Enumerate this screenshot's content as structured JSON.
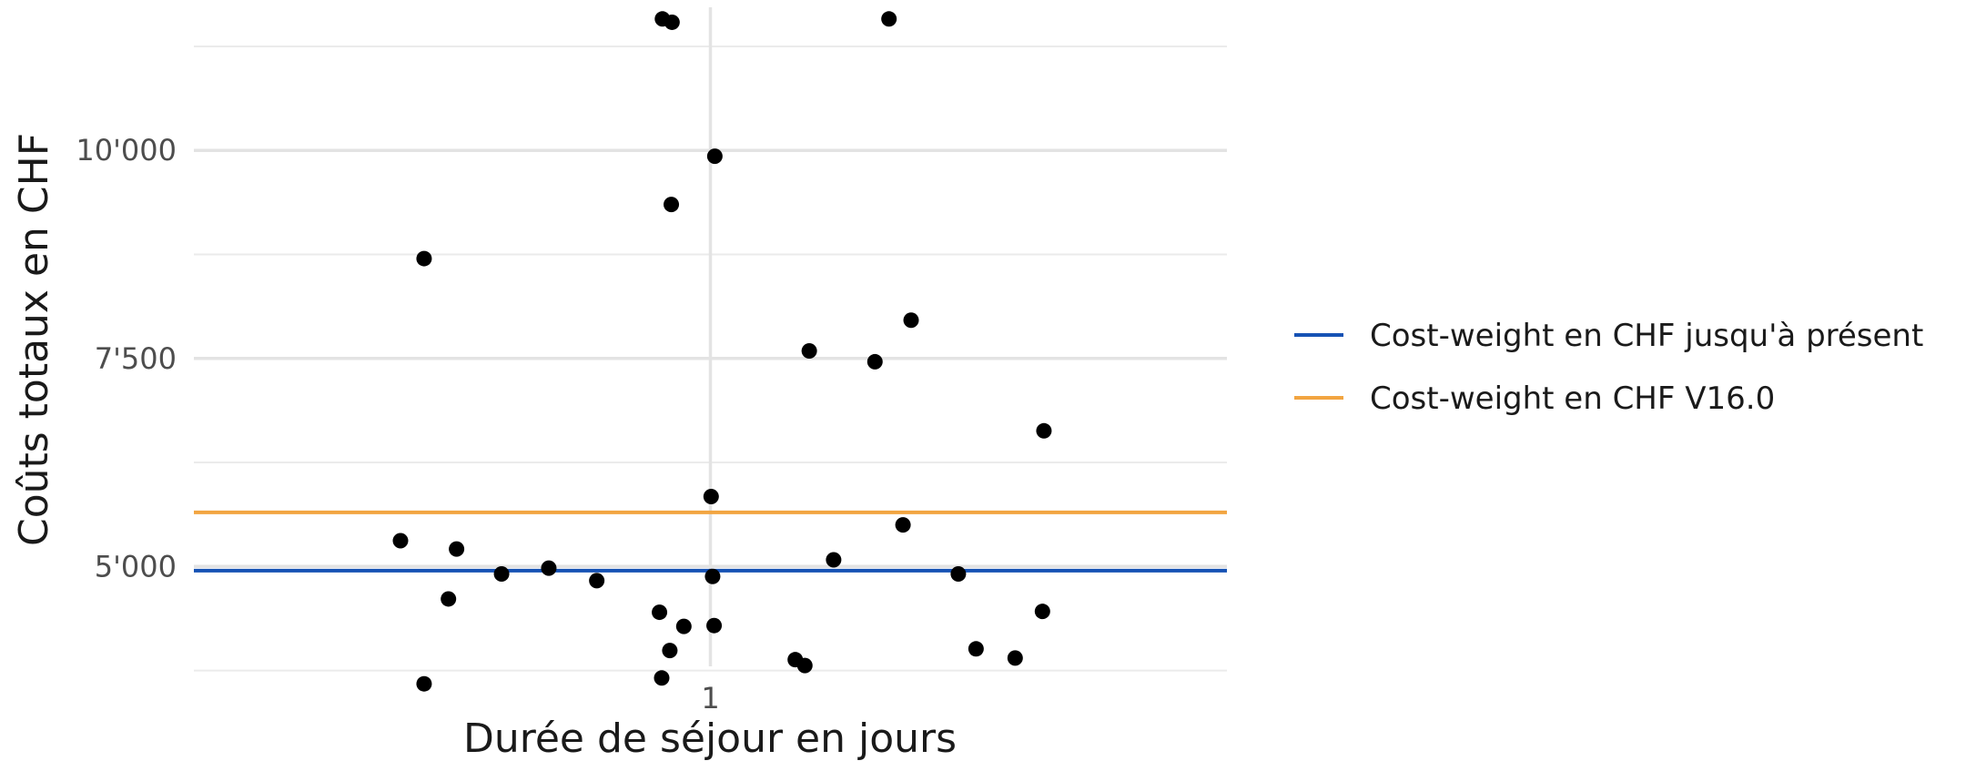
{
  "chart_data": {
    "type": "scatter",
    "title": "",
    "xlabel": "Durée de séjour en jours",
    "ylabel": "Coûts totaux en CHF",
    "xlim": [
      0.3,
      1.7
    ],
    "ylim": [
      3800,
      11720
    ],
    "x_ticks": [
      {
        "value": 1,
        "label": "1"
      }
    ],
    "y_ticks": [
      {
        "value": 5000,
        "label": "5'000"
      },
      {
        "value": 7500,
        "label": "7'500"
      },
      {
        "value": 10000,
        "label": "10'000"
      }
    ],
    "y_minor_gridlines": [
      3750,
      6250,
      8750,
      11250
    ],
    "grid": true,
    "legend_position": "right",
    "reference_lines": [
      {
        "name": "Cost-weight en CHF jusqu'à présent",
        "y": 4950,
        "color": "#1652b4"
      },
      {
        "name": "Cost-weight en CHF V16.0",
        "y": 5650,
        "color": "#f2a541"
      }
    ],
    "points": [
      {
        "x": 0.935,
        "y": 11580
      },
      {
        "x": 0.948,
        "y": 11540
      },
      {
        "x": 1.242,
        "y": 11580
      },
      {
        "x": 1.006,
        "y": 9930
      },
      {
        "x": 0.947,
        "y": 9350
      },
      {
        "x": 0.612,
        "y": 8700
      },
      {
        "x": 1.272,
        "y": 7960
      },
      {
        "x": 1.134,
        "y": 7590
      },
      {
        "x": 1.223,
        "y": 7460
      },
      {
        "x": 1.452,
        "y": 6630
      },
      {
        "x": 1.001,
        "y": 5840
      },
      {
        "x": 1.261,
        "y": 5500
      },
      {
        "x": 0.58,
        "y": 5310
      },
      {
        "x": 0.656,
        "y": 5210
      },
      {
        "x": 0.781,
        "y": 4980
      },
      {
        "x": 1.167,
        "y": 5080
      },
      {
        "x": 0.717,
        "y": 4910
      },
      {
        "x": 0.846,
        "y": 4830
      },
      {
        "x": 1.003,
        "y": 4880
      },
      {
        "x": 1.336,
        "y": 4910
      },
      {
        "x": 0.645,
        "y": 4610
      },
      {
        "x": 0.931,
        "y": 4450
      },
      {
        "x": 0.964,
        "y": 4280
      },
      {
        "x": 1.005,
        "y": 4290
      },
      {
        "x": 1.45,
        "y": 4460
      },
      {
        "x": 0.945,
        "y": 3990
      },
      {
        "x": 1.36,
        "y": 4010
      },
      {
        "x": 1.413,
        "y": 3900
      },
      {
        "x": 1.115,
        "y": 3880
      },
      {
        "x": 1.128,
        "y": 3810
      },
      {
        "x": 0.934,
        "y": 3660
      },
      {
        "x": 0.612,
        "y": 3590
      }
    ]
  }
}
